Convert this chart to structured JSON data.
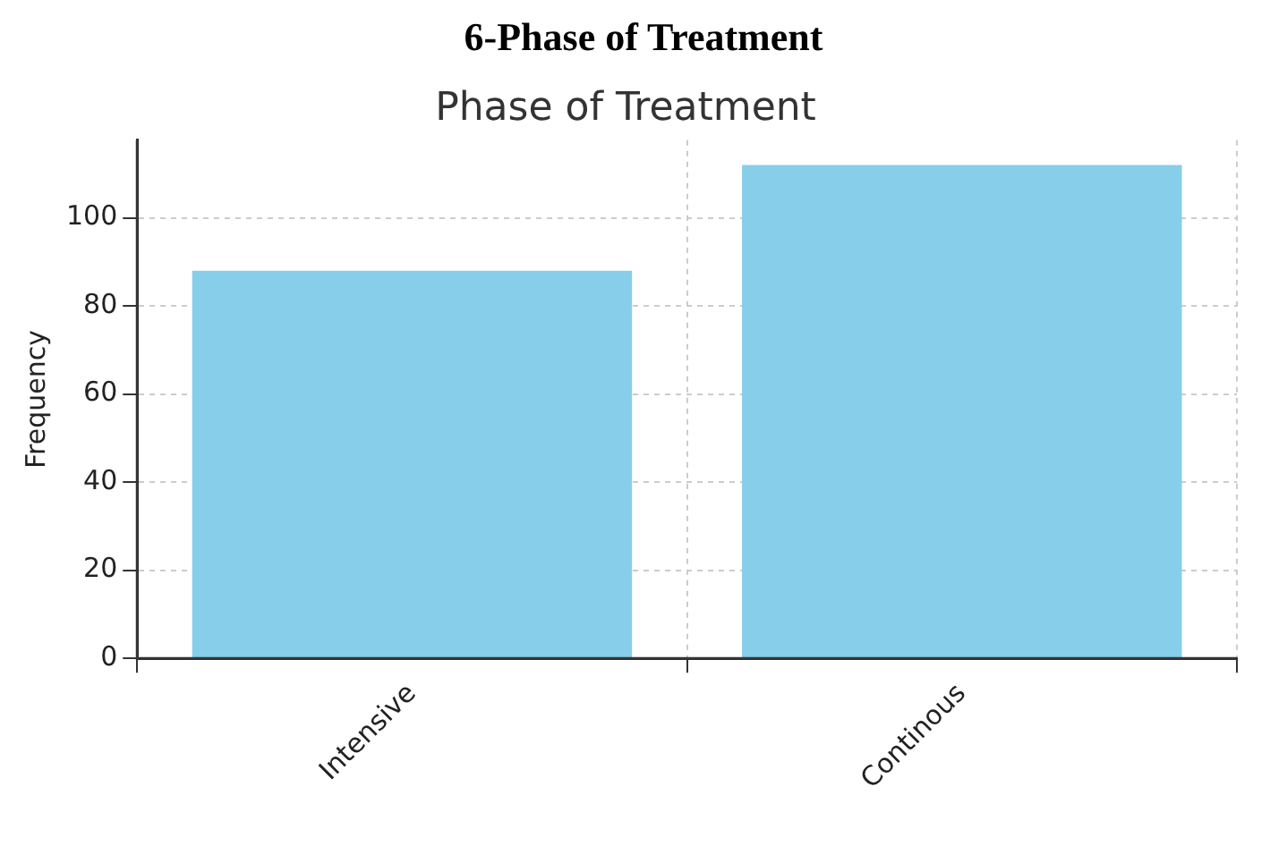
{
  "chart_data": {
    "type": "bar",
    "title": "6-Phase of Treatment",
    "subtitle": "Phase of Treatment",
    "ylabel": "Frequency",
    "categories": [
      "Intensive",
      "Continous"
    ],
    "values": [
      88,
      112
    ],
    "color": "#87ceeb",
    "ylim": [
      0,
      117.6
    ],
    "yticks": [
      0,
      20,
      40,
      60,
      80,
      100
    ],
    "grid": true
  }
}
